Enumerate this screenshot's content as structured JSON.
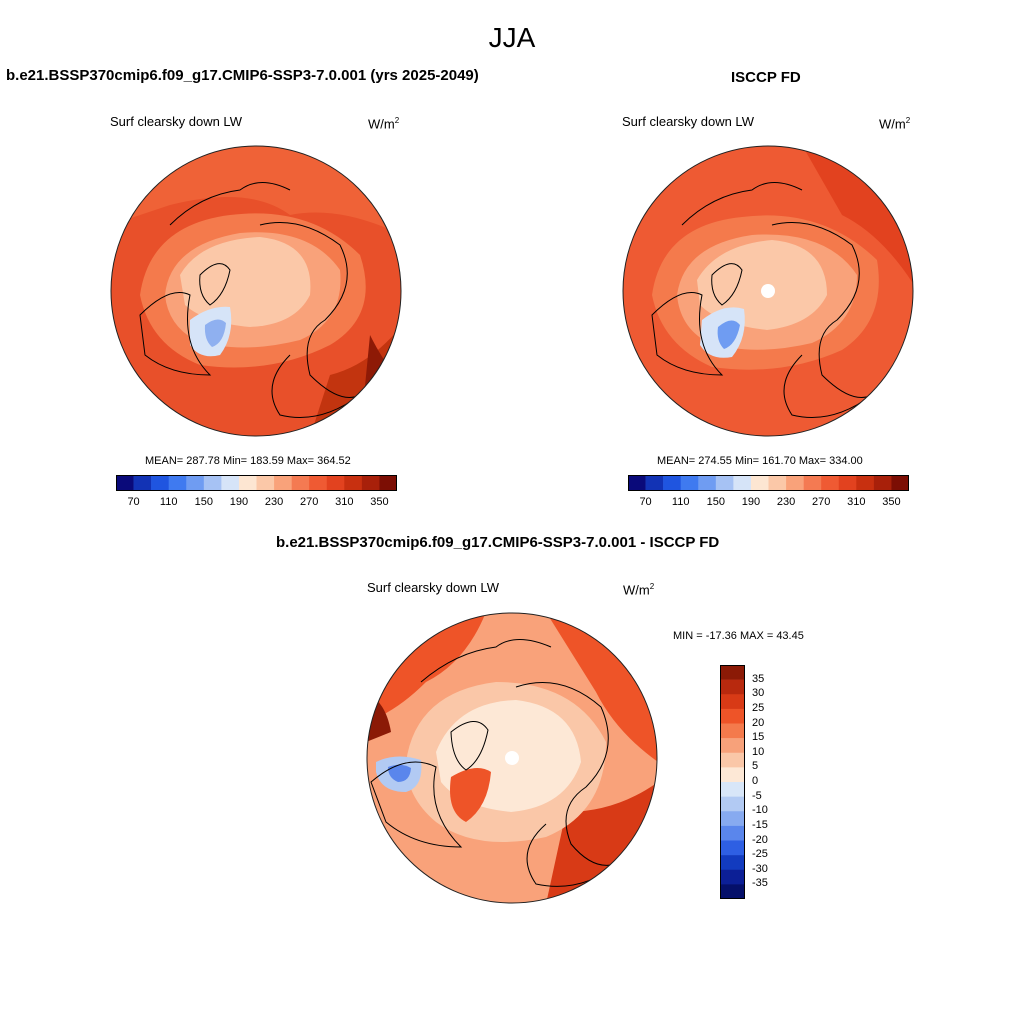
{
  "figure": {
    "season": "JJA",
    "variable_label": "Surf clearsky down LW",
    "unit_base": "W/m",
    "unit_exp": "2"
  },
  "panels": [
    {
      "title": "b.e21.BSSP370cmip6.f09_g17.CMIP6-SSP3-7.0.001 (yrs 2025-2049)",
      "stats": "MEAN= 287.78  Min= 183.59  Max= 364.52"
    },
    {
      "title": "ISCCP FD",
      "stats": "MEAN= 274.55  Min= 161.70  Max= 334.00"
    },
    {
      "title": "b.e21.BSSP370cmip6.f09_g17.CMIP6-SSP3-7.0.001 - ISCCP FD",
      "stats": "MIN = -17.36 MAX =  43.45"
    }
  ],
  "colorbar_abs": {
    "tick_labels": [
      "70",
      "110",
      "150",
      "190",
      "230",
      "270",
      "310",
      "350"
    ],
    "colors": [
      "#0a0a7a",
      "#1233b5",
      "#1f55e0",
      "#3f7af0",
      "#6f9cf2",
      "#a6c2f4",
      "#d6e4f8",
      "#fde6d2",
      "#fbc8a8",
      "#f9a27a",
      "#f47a52",
      "#ef5a33",
      "#e2421f",
      "#c83010",
      "#a8200a",
      "#7c0e04"
    ]
  },
  "colorbar_diff": {
    "labels": [
      "35",
      "30",
      "25",
      "20",
      "15",
      "10",
      "5",
      "0",
      "-5",
      "-10",
      "-15",
      "-20",
      "-25",
      "-30",
      "-35"
    ],
    "colors": [
      "#8b1a06",
      "#b8290e",
      "#d83a16",
      "#ee5428",
      "#f47a4c",
      "#f7a17a",
      "#fac7a8",
      "#fde8d6",
      "#d8e6f8",
      "#b2caf3",
      "#87aaf0",
      "#5a86ec",
      "#2e5fe3",
      "#123bbf",
      "#0c1f96",
      "#05106a"
    ]
  },
  "maps": {
    "land_color": "#000000",
    "outline_color": "#222222"
  }
}
